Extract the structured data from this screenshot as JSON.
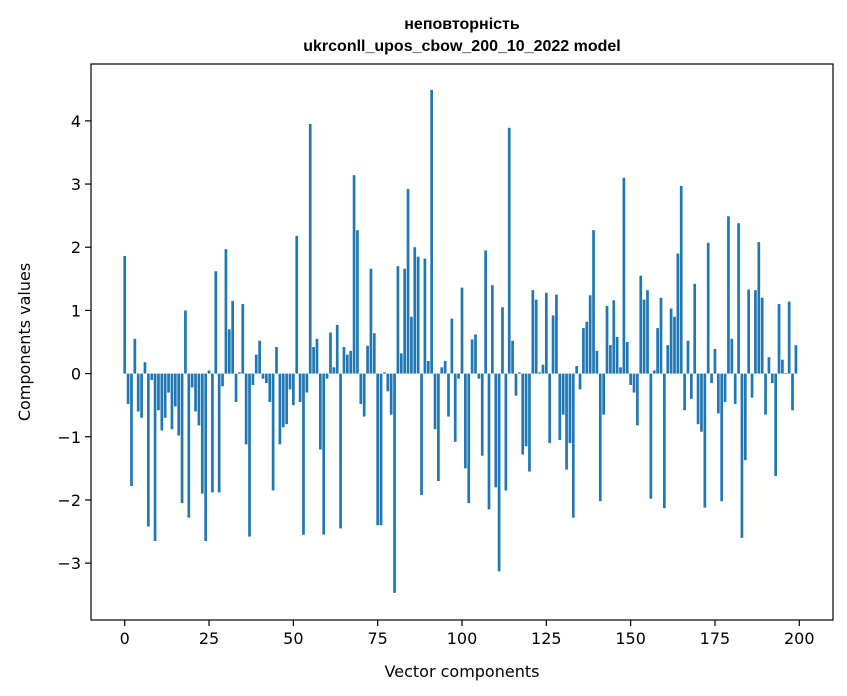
{
  "chart_data": {
    "type": "bar",
    "title": "неповторність",
    "subtitle": "ukrconll_upos_cbow_200_10_2022 model",
    "xlabel": "Vector components",
    "ylabel": "Components values",
    "xlim": [
      -10,
      210
    ],
    "ylim": [
      -3.9,
      4.9
    ],
    "xticks": [
      0,
      25,
      50,
      75,
      100,
      125,
      150,
      175,
      200
    ],
    "yticks": [
      -3,
      -2,
      -1,
      0,
      1,
      2,
      3,
      4
    ],
    "ytick_labels": [
      "−3",
      "−2",
      "−1",
      "0",
      "1",
      "2",
      "3",
      "4"
    ],
    "grid": false,
    "bar_color": "#1f77b4",
    "values": [
      1.86,
      -0.48,
      -1.78,
      0.55,
      -0.6,
      -0.7,
      0.18,
      -2.42,
      -0.1,
      -2.65,
      -0.58,
      -0.9,
      -0.7,
      -0.3,
      -0.88,
      -0.52,
      -0.98,
      -2.05,
      1.0,
      -2.28,
      -0.22,
      -0.6,
      -0.82,
      -1.9,
      -2.65,
      0.05,
      -1.88,
      1.62,
      -1.88,
      -0.2,
      1.97,
      0.7,
      1.15,
      -0.45,
      0.02,
      1.1,
      -1.12,
      -2.58,
      -0.18,
      0.3,
      0.52,
      -0.08,
      -0.15,
      -0.45,
      -1.85,
      0.42,
      -1.12,
      -0.85,
      -0.8,
      -0.25,
      -0.5,
      2.18,
      -0.45,
      -2.55,
      -0.3,
      3.95,
      0.42,
      0.55,
      -1.2,
      -2.55,
      -0.08,
      0.65,
      0.1,
      0.77,
      -2.45,
      0.42,
      0.3,
      0.36,
      3.14,
      2.27,
      -0.48,
      -0.68,
      0.44,
      1.66,
      0.64,
      -2.4,
      -2.4,
      0.02,
      -0.28,
      -0.65,
      -3.47,
      1.7,
      0.32,
      1.66,
      2.92,
      0.9,
      2.0,
      1.85,
      -1.92,
      1.82,
      0.2,
      4.49,
      -0.88,
      -1.7,
      0.1,
      0.2,
      -0.68,
      0.87,
      -1.08,
      -0.08,
      1.36,
      -1.5,
      -2.05,
      0.54,
      0.62,
      -0.08,
      -1.3,
      1.95,
      -2.15,
      1.4,
      -1.8,
      -3.13,
      1.05,
      -1.85,
      3.89,
      0.52,
      -0.35,
      0.02,
      -1.28,
      -1.15,
      -1.55,
      1.32,
      1.17,
      0.02,
      0.14,
      1.28,
      -1.1,
      0.92,
      1.25,
      -1.05,
      -0.65,
      -1.52,
      -1.1,
      -2.28,
      0.12,
      -0.25,
      0.72,
      0.82,
      1.24,
      2.27,
      0.36,
      -2.02,
      -0.65,
      1.07,
      0.45,
      1.16,
      0.58,
      0.1,
      3.1,
      0.5,
      -0.18,
      -0.3,
      -0.82,
      1.55,
      1.17,
      1.32,
      -1.98,
      0.05,
      0.72,
      1.2,
      -2.13,
      0.45,
      1.03,
      0.9,
      1.9,
      2.97,
      -0.58,
      0.52,
      -0.4,
      1.42,
      -0.8,
      -0.92,
      -2.12,
      2.07,
      -0.15,
      0.39,
      -0.63,
      -2.02,
      -0.45,
      2.49,
      0.55,
      -0.48,
      2.38,
      -2.6,
      -1.37,
      1.33,
      -0.38,
      1.32,
      2.08,
      1.2,
      -0.65,
      0.26,
      -0.15,
      -1.62,
      1.1,
      0.22,
      0.01,
      1.14,
      -0.58,
      0.45
    ]
  }
}
